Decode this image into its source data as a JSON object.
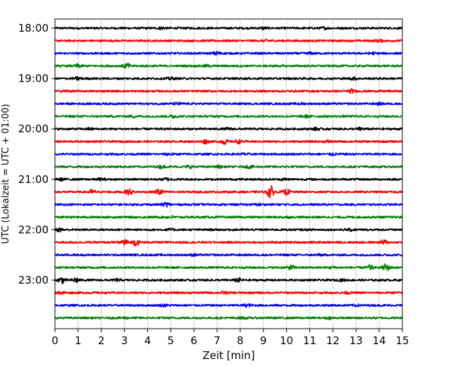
{
  "chart_data": {
    "type": "line",
    "title": "",
    "xlabel": "Zeit  [min]",
    "ylabel": "UTC (Lokalzeit = UTC + 01:00)",
    "xlim": [
      0,
      15
    ],
    "x_ticks": [
      "0",
      "1",
      "2",
      "3",
      "4",
      "5",
      "6",
      "7",
      "8",
      "9",
      "10",
      "11",
      "12",
      "13",
      "14",
      "15"
    ],
    "y_tick_labels": [
      "18:00",
      "19:00",
      "20:00",
      "21:00",
      "22:00",
      "23:00"
    ],
    "grid": "vertical dotted lines at each minute",
    "trace_interval_minutes": 15,
    "colors_cycle": [
      "#000000",
      "#ff0000",
      "#0000ff",
      "#008000"
    ],
    "series": [
      {
        "start": "18:00",
        "color": "#000000",
        "events": [
          [
            4.6,
            0.15
          ],
          [
            9.0,
            0.12
          ],
          [
            11.6,
            0.12
          ]
        ]
      },
      {
        "start": "18:15",
        "color": "#ff0000",
        "events": [
          [
            9.2,
            0.15
          ],
          [
            14.0,
            0.15
          ]
        ]
      },
      {
        "start": "18:30",
        "color": "#0000ff",
        "events": [
          [
            7.0,
            0.25
          ],
          [
            11.0,
            0.12
          ],
          [
            13.7,
            0.12
          ]
        ]
      },
      {
        "start": "18:45",
        "color": "#008000",
        "events": [
          [
            1.0,
            0.22
          ],
          [
            3.1,
            0.35
          ],
          [
            6.5,
            0.12
          ]
        ]
      },
      {
        "start": "19:00",
        "color": "#000000",
        "events": [
          [
            1.0,
            0.2
          ],
          [
            5.0,
            0.15
          ],
          [
            12.9,
            0.15
          ]
        ]
      },
      {
        "start": "19:15",
        "color": "#ff0000",
        "events": [
          [
            0.5,
            0.12
          ],
          [
            12.8,
            0.25
          ]
        ]
      },
      {
        "start": "19:30",
        "color": "#0000ff",
        "events": [
          [
            5.3,
            0.15
          ],
          [
            10.6,
            0.12
          ],
          [
            14.0,
            0.12
          ]
        ]
      },
      {
        "start": "19:45",
        "color": "#008000",
        "events": [
          [
            3.4,
            0.12
          ],
          [
            5.1,
            0.2
          ],
          [
            10.8,
            0.15
          ]
        ]
      },
      {
        "start": "20:00",
        "color": "#000000",
        "events": [
          [
            1.5,
            0.12
          ],
          [
            7.5,
            0.15
          ],
          [
            11.3,
            0.2
          ],
          [
            13.2,
            0.18
          ]
        ]
      },
      {
        "start": "20:15",
        "color": "#ff0000",
        "events": [
          [
            6.5,
            0.25
          ],
          [
            7.3,
            0.35
          ],
          [
            7.9,
            0.25
          ],
          [
            11.8,
            0.15
          ]
        ]
      },
      {
        "start": "20:30",
        "color": "#0000ff",
        "events": [
          [
            4.9,
            0.15
          ],
          [
            8.2,
            0.12
          ],
          [
            12.0,
            0.15
          ]
        ]
      },
      {
        "start": "20:45",
        "color": "#008000",
        "events": [
          [
            4.6,
            0.18
          ],
          [
            5.8,
            0.18
          ],
          [
            7.1,
            0.12
          ],
          [
            8.4,
            0.2
          ]
        ]
      },
      {
        "start": "21:00",
        "color": "#000000",
        "events": [
          [
            0.3,
            0.15
          ],
          [
            2.0,
            0.15
          ],
          [
            4.8,
            0.18
          ],
          [
            9.9,
            0.12
          ]
        ]
      },
      {
        "start": "21:15",
        "color": "#ff0000",
        "events": [
          [
            1.6,
            0.3
          ],
          [
            3.2,
            0.45
          ],
          [
            4.5,
            0.5
          ],
          [
            9.3,
            0.95
          ],
          [
            10.0,
            0.4
          ]
        ]
      },
      {
        "start": "21:30",
        "color": "#0000ff",
        "events": [
          [
            4.8,
            0.3
          ],
          [
            8.8,
            0.12
          ]
        ]
      },
      {
        "start": "21:45",
        "color": "#008000",
        "events": [
          [
            5.0,
            0.12
          ],
          [
            10.0,
            0.1
          ]
        ]
      },
      {
        "start": "22:00",
        "color": "#000000",
        "events": [
          [
            0.2,
            0.22
          ],
          [
            5.0,
            0.12
          ],
          [
            12.8,
            0.15
          ]
        ]
      },
      {
        "start": "22:15",
        "color": "#ff0000",
        "events": [
          [
            3.0,
            0.55
          ],
          [
            3.5,
            0.45
          ],
          [
            14.2,
            0.35
          ]
        ]
      },
      {
        "start": "22:30",
        "color": "#0000ff",
        "events": [
          [
            6.0,
            0.12
          ],
          [
            11.4,
            0.1
          ]
        ]
      },
      {
        "start": "22:45",
        "color": "#008000",
        "events": [
          [
            10.2,
            0.3
          ],
          [
            12.0,
            0.15
          ],
          [
            13.6,
            0.35
          ],
          [
            14.3,
            0.55
          ]
        ]
      },
      {
        "start": "23:00",
        "color": "#000000",
        "events": [
          [
            0.3,
            0.45
          ],
          [
            0.9,
            0.35
          ],
          [
            2.7,
            0.15
          ],
          [
            7.9,
            0.25
          ],
          [
            12.4,
            0.12
          ]
        ]
      },
      {
        "start": "23:15",
        "color": "#ff0000",
        "events": [
          [
            0.3,
            0.15
          ],
          [
            7.3,
            0.12
          ],
          [
            12.6,
            0.12
          ]
        ]
      },
      {
        "start": "23:30",
        "color": "#0000ff",
        "events": [
          [
            4.7,
            0.15
          ],
          [
            8.3,
            0.18
          ],
          [
            13.0,
            0.12
          ]
        ]
      },
      {
        "start": "23:45",
        "color": "#008000",
        "events": [
          [
            3.0,
            0.12
          ],
          [
            8.1,
            0.12
          ],
          [
            11.8,
            0.12
          ]
        ]
      }
    ]
  }
}
